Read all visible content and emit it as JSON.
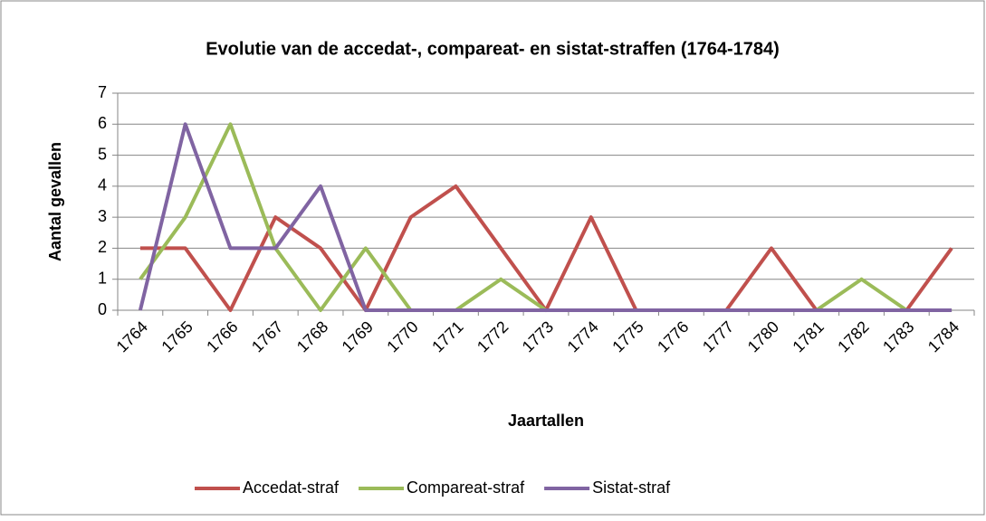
{
  "chart_data": {
    "type": "line",
    "title": "Evolutie van de accedat-, compareat- en sistat-straffen (1764-1784)",
    "x_label": "Jaartallen",
    "y_label": "Aantal gevallen",
    "categories": [
      "1764",
      "1765",
      "1766",
      "1767",
      "1768",
      "1769",
      "1770",
      "1771",
      "1772",
      "1773",
      "1774",
      "1775",
      "1776",
      "1777",
      "1780",
      "1781",
      "1782",
      "1783",
      "1784"
    ],
    "series": [
      {
        "name": "Accedat-straf",
        "color": "#c0504d",
        "values": [
          2,
          2,
          0,
          3,
          2,
          0,
          3,
          4,
          2,
          0,
          3,
          0,
          0,
          0,
          2,
          0,
          0,
          0,
          2
        ]
      },
      {
        "name": "Compareat-straf",
        "color": "#9bbb59",
        "values": [
          1,
          3,
          6,
          2,
          0,
          2,
          0,
          0,
          1,
          0,
          0,
          0,
          0,
          0,
          0,
          0,
          1,
          0,
          0
        ]
      },
      {
        "name": "Sistat-straf",
        "color": "#8064a2",
        "values": [
          0,
          6,
          2,
          2,
          4,
          0,
          0,
          0,
          0,
          0,
          0,
          0,
          0,
          0,
          0,
          0,
          0,
          0,
          0
        ]
      }
    ],
    "ylim": [
      0,
      7
    ],
    "yticks": [
      0,
      1,
      2,
      3,
      4,
      5,
      6,
      7
    ],
    "grid": true,
    "legend": "bottom"
  }
}
